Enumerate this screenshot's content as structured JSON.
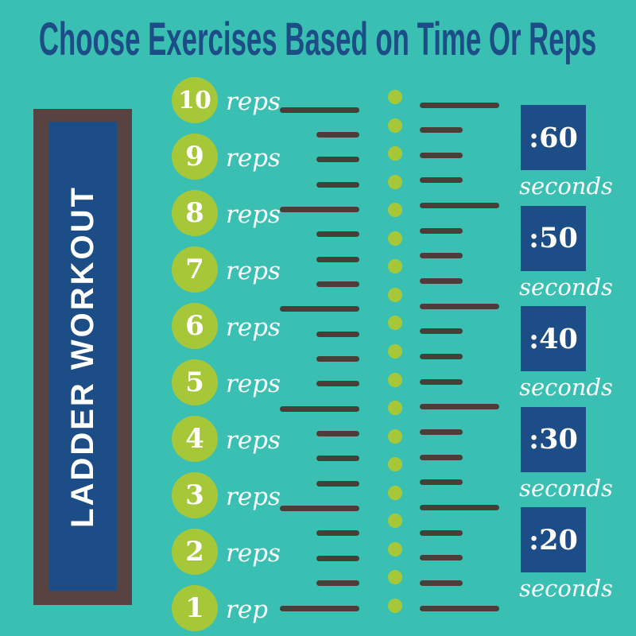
{
  "title": "Choose Exercises Based on Time Or Reps",
  "sign": {
    "label": "LADDER WORKOUT"
  },
  "rep_ladder": {
    "rows": [
      {
        "count": "10",
        "unit": "reps"
      },
      {
        "count": "9",
        "unit": "reps"
      },
      {
        "count": "8",
        "unit": "reps"
      },
      {
        "count": "7",
        "unit": "reps"
      },
      {
        "count": "6",
        "unit": "reps"
      },
      {
        "count": "5",
        "unit": "reps"
      },
      {
        "count": "4",
        "unit": "reps"
      },
      {
        "count": "3",
        "unit": "reps"
      },
      {
        "count": "2",
        "unit": "reps"
      },
      {
        "count": "1",
        "unit": "rep"
      }
    ]
  },
  "time_column": {
    "boxes": [
      {
        "time": ":60",
        "unit": "seconds"
      },
      {
        "time": ":50",
        "unit": "seconds"
      },
      {
        "time": ":40",
        "unit": "seconds"
      },
      {
        "time": ":30",
        "unit": "seconds"
      },
      {
        "time": ":20",
        "unit": "seconds"
      }
    ]
  },
  "ladder_graphic": {
    "left_rung_count": 21,
    "right_rung_count": 21,
    "dot_count": 19,
    "long_rung_every": 4
  },
  "colors": {
    "background_teal": "#3ac0b2",
    "navy": "#1d4d86",
    "green": "#a6c838",
    "frame_brown": "#574442",
    "rung_brown": "#4a3e39",
    "text_white": "#ffffff"
  }
}
